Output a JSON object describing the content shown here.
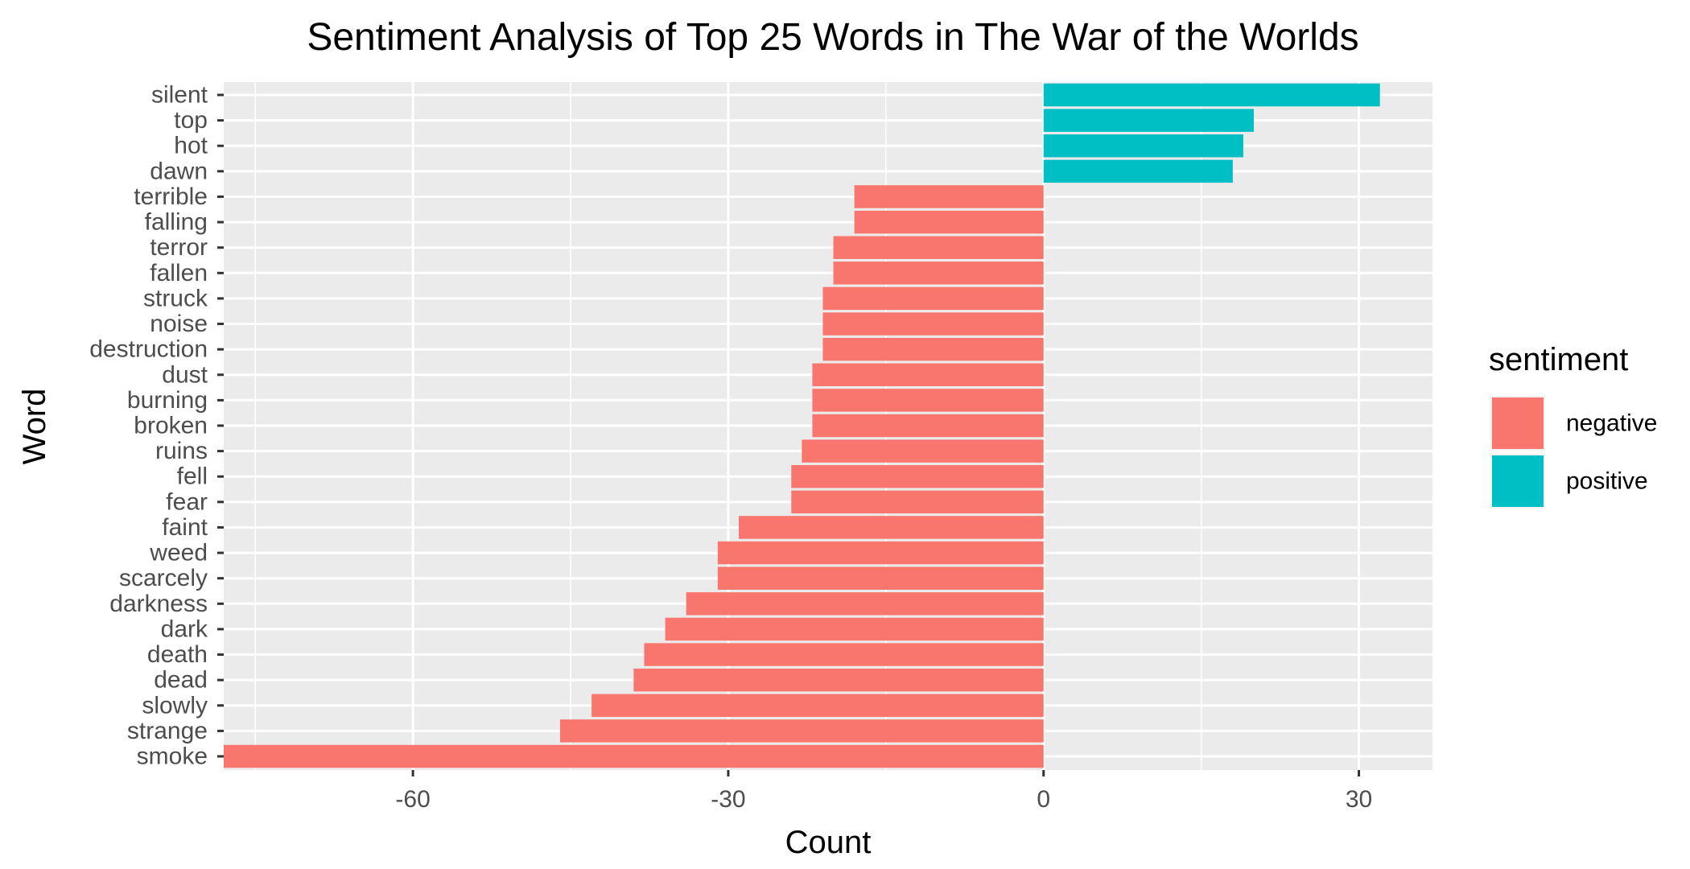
{
  "chart_data": {
    "type": "bar",
    "orientation": "horizontal",
    "title": "Sentiment Analysis of Top 25 Words in The War of the Worlds",
    "xlabel": "Count",
    "ylabel": "Word",
    "xlim": [
      -78,
      37
    ],
    "xticks": [
      -60,
      -30,
      0,
      30
    ],
    "grid": true,
    "legend": {
      "title": "sentiment",
      "position": "right",
      "items": [
        {
          "label": "negative",
          "color": "#F8766D"
        },
        {
          "label": "positive",
          "color": "#00BFC4"
        }
      ]
    },
    "categories": [
      "silent",
      "top",
      "hot",
      "dawn",
      "terrible",
      "falling",
      "terror",
      "fallen",
      "struck",
      "noise",
      "destruction",
      "dust",
      "burning",
      "broken",
      "ruins",
      "fell",
      "fear",
      "faint",
      "weed",
      "scarcely",
      "darkness",
      "dark",
      "death",
      "dead",
      "slowly",
      "strange",
      "smoke"
    ],
    "values": [
      32,
      20,
      19,
      18,
      -18,
      -18,
      -20,
      -20,
      -21,
      -21,
      -21,
      -22,
      -22,
      -22,
      -23,
      -24,
      -24,
      -29,
      -31,
      -31,
      -34,
      -36,
      -38,
      -39,
      -43,
      -46,
      -78
    ],
    "sentiment": [
      "positive",
      "positive",
      "positive",
      "positive",
      "negative",
      "negative",
      "negative",
      "negative",
      "negative",
      "negative",
      "negative",
      "negative",
      "negative",
      "negative",
      "negative",
      "negative",
      "negative",
      "negative",
      "negative",
      "negative",
      "negative",
      "negative",
      "negative",
      "negative",
      "negative",
      "negative",
      "negative"
    ]
  }
}
